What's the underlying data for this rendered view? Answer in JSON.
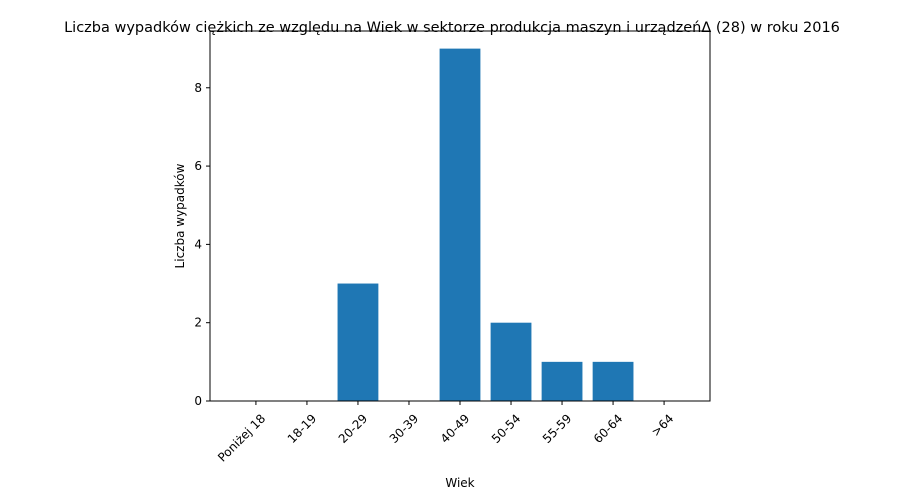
{
  "chart_data": {
    "type": "bar",
    "title": "Liczba wypadków ciężkich ze względu na Wiek w sektorze produkcja maszyn i urządzeńΔ (28)  w roku 2016",
    "xlabel": "Wiek",
    "ylabel": "Liczba wypadków",
    "categories": [
      "Poniżej 18",
      "18-19",
      "20-29",
      "30-39",
      "40-49",
      "50-54",
      "55-59",
      "60-64",
      ">64"
    ],
    "values": [
      0,
      0,
      3,
      0,
      9,
      2,
      1,
      1,
      0
    ],
    "ylim": [
      0,
      9.45
    ],
    "yticks": [
      0,
      2,
      4,
      6,
      8
    ],
    "bar_color": "#1f77b4",
    "grid": false,
    "legend": "none"
  }
}
